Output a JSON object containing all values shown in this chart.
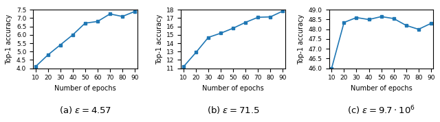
{
  "epochs": [
    10,
    20,
    30,
    40,
    50,
    60,
    70,
    80,
    90
  ],
  "plot1": {
    "values": [
      4.1,
      4.8,
      5.4,
      6.0,
      6.7,
      6.8,
      7.25,
      7.1,
      7.4
    ],
    "ylabel": "Top-1 accuracy",
    "xlabel": "Number of epochs",
    "caption": "(a) $\\epsilon = 4.57$",
    "ylim": [
      4.0,
      7.5
    ],
    "yticks": [
      4.0,
      4.5,
      5.0,
      5.5,
      6.0,
      6.5,
      7.0,
      7.5
    ]
  },
  "plot2": {
    "values": [
      11.2,
      12.9,
      14.7,
      15.2,
      15.8,
      16.5,
      17.1,
      17.15,
      17.85
    ],
    "ylabel": "Top-1 accuracy",
    "xlabel": "Number of epochs",
    "caption": "(b) $\\epsilon = 71.5$",
    "ylim": [
      11,
      18
    ],
    "yticks": [
      11,
      12,
      13,
      14,
      15,
      16,
      17,
      18
    ]
  },
  "plot3": {
    "values": [
      46.0,
      48.35,
      48.6,
      48.5,
      48.65,
      48.55,
      48.2,
      48.0,
      48.3
    ],
    "ylabel": "Top-1 accuracy",
    "xlabel": "Number of epochs",
    "caption": "(c) $\\epsilon = 9.7 \\cdot 10^6$",
    "ylim": [
      46.0,
      49.0
    ],
    "yticks": [
      46.0,
      46.5,
      47.0,
      47.5,
      48.0,
      48.5,
      49.0
    ]
  },
  "line_color": "#1f77b4",
  "marker": "s",
  "markersize": 3.0,
  "linewidth": 1.2,
  "tick_fontsize": 6.5,
  "label_fontsize": 7.0,
  "caption_fontsize": 9.5
}
